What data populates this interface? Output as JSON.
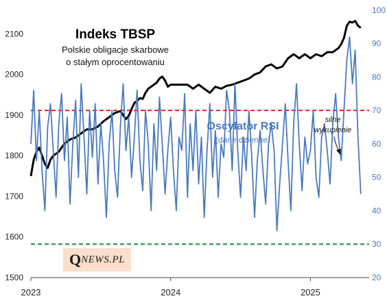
{
  "chart_data": {
    "type": "line",
    "title": "Indeks TBSP",
    "subtitle_lines": [
      "Polskie obligacje skarbowe",
      "o stałym oprocentowaniu"
    ],
    "secondary_title": "Oscylator RSI",
    "secondary_subtitle": "(dane dzienne)",
    "annotation_lines": [
      "silne",
      "wykupienie"
    ],
    "x_tick_labels": [
      "2023",
      "2024",
      "2025"
    ],
    "x_ticks_at": [
      2023,
      2024,
      2025
    ],
    "xlim": [
      2023.0,
      2025.42
    ],
    "y_left": {
      "ticks": [
        1500,
        1600,
        1700,
        1800,
        1900,
        2000,
        2100
      ],
      "ylim": [
        1500,
        2175
      ]
    },
    "y_right": {
      "ticks": [
        20,
        30,
        40,
        50,
        60,
        70,
        80,
        90,
        100
      ],
      "ylim": [
        20,
        102
      ]
    },
    "reference_lines": [
      {
        "axis": "right",
        "value": 70,
        "color": "#e02020",
        "style": "dashed"
      },
      {
        "axis": "right",
        "value": 30,
        "color": "#1f8a3c",
        "style": "dashed"
      }
    ],
    "grid": false,
    "series": [
      {
        "axis": "left",
        "color": "#000000",
        "x": [
          2023.0,
          2023.02,
          2023.04,
          2023.06,
          2023.08,
          2023.1,
          2023.12,
          2023.14,
          2023.16,
          2023.18,
          2023.2,
          2023.24,
          2023.28,
          2023.32,
          2023.36,
          2023.4,
          2023.44,
          2023.48,
          2023.52,
          2023.56,
          2023.6,
          2023.64,
          2023.66,
          2023.68,
          2023.7,
          2023.72,
          2023.74,
          2023.76,
          2023.78,
          2023.8,
          2023.82,
          2023.84,
          2023.86,
          2023.88,
          2023.9,
          2023.92,
          2023.94,
          2023.96,
          2023.98,
          2024.0,
          2024.04,
          2024.08,
          2024.12,
          2024.16,
          2024.2,
          2024.24,
          2024.28,
          2024.32,
          2024.36,
          2024.4,
          2024.44,
          2024.48,
          2024.52,
          2024.56,
          2024.6,
          2024.64,
          2024.68,
          2024.72,
          2024.76,
          2024.8,
          2024.84,
          2024.88,
          2024.92,
          2024.96,
          2025.0,
          2025.04,
          2025.08,
          2025.12,
          2025.16,
          2025.2,
          2025.22,
          2025.24,
          2025.26,
          2025.28,
          2025.3,
          2025.32,
          2025.34,
          2025.36
        ],
        "values": [
          1750,
          1790,
          1810,
          1820,
          1800,
          1780,
          1770,
          1790,
          1800,
          1805,
          1810,
          1830,
          1840,
          1845,
          1855,
          1865,
          1865,
          1872,
          1885,
          1895,
          1905,
          1910,
          1900,
          1890,
          1898,
          1915,
          1930,
          1935,
          1942,
          1940,
          1955,
          1965,
          1970,
          1975,
          1980,
          1990,
          1995,
          1985,
          1970,
          1975,
          1975,
          1975,
          1975,
          1965,
          1975,
          1965,
          1955,
          1970,
          1965,
          1972,
          1975,
          1980,
          1985,
          1990,
          2000,
          2005,
          2020,
          2025,
          2015,
          2020,
          2040,
          2050,
          2040,
          2050,
          2040,
          2050,
          2045,
          2055,
          2055,
          2065,
          2075,
          2090,
          2120,
          2130,
          2128,
          2132,
          2120,
          2115
        ]
      },
      {
        "axis": "right",
        "color": "#4a7abf",
        "x": [
          2023.0,
          2023.02,
          2023.04,
          2023.06,
          2023.08,
          2023.1,
          2023.12,
          2023.14,
          2023.16,
          2023.18,
          2023.2,
          2023.22,
          2023.24,
          2023.26,
          2023.28,
          2023.3,
          2023.32,
          2023.34,
          2023.36,
          2023.38,
          2023.4,
          2023.42,
          2023.44,
          2023.46,
          2023.48,
          2023.5,
          2023.52,
          2023.54,
          2023.56,
          2023.58,
          2023.6,
          2023.62,
          2023.64,
          2023.66,
          2023.68,
          2023.7,
          2023.72,
          2023.74,
          2023.76,
          2023.78,
          2023.8,
          2023.82,
          2023.84,
          2023.86,
          2023.88,
          2023.9,
          2023.92,
          2023.94,
          2023.96,
          2023.98,
          2024.0,
          2024.02,
          2024.04,
          2024.06,
          2024.08,
          2024.1,
          2024.12,
          2024.14,
          2024.16,
          2024.18,
          2024.2,
          2024.22,
          2024.24,
          2024.26,
          2024.28,
          2024.3,
          2024.32,
          2024.34,
          2024.36,
          2024.38,
          2024.4,
          2024.42,
          2024.44,
          2024.46,
          2024.48,
          2024.5,
          2024.52,
          2024.54,
          2024.56,
          2024.58,
          2024.6,
          2024.62,
          2024.64,
          2024.66,
          2024.68,
          2024.7,
          2024.72,
          2024.74,
          2024.76,
          2024.78,
          2024.8,
          2024.82,
          2024.84,
          2024.86,
          2024.88,
          2024.9,
          2024.92,
          2024.94,
          2024.96,
          2024.98,
          2025.0,
          2025.02,
          2025.04,
          2025.06,
          2025.08,
          2025.1,
          2025.12,
          2025.14,
          2025.16,
          2025.18,
          2025.2,
          2025.22,
          2025.24,
          2025.26,
          2025.28,
          2025.3,
          2025.32,
          2025.34,
          2025.36
        ],
        "values": [
          60,
          76,
          55,
          70,
          52,
          40,
          65,
          72,
          58,
          44,
          66,
          75,
          55,
          68,
          42,
          60,
          73,
          50,
          78,
          62,
          45,
          70,
          56,
          72,
          48,
          66,
          55,
          38,
          60,
          70,
          52,
          44,
          65,
          78,
          58,
          68,
          50,
          62,
          76,
          55,
          46,
          70,
          60,
          40,
          66,
          52,
          74,
          60,
          45,
          58,
          68,
          52,
          40,
          62,
          58,
          75,
          44,
          66,
          52,
          70,
          48,
          62,
          38,
          58,
          72,
          50,
          64,
          44,
          60,
          56,
          76,
          70,
          52,
          78,
          58,
          44,
          62,
          52,
          70,
          56,
          38,
          55,
          64,
          52,
          42,
          60,
          66,
          58,
          34,
          48,
          60,
          72,
          55,
          40,
          66,
          78,
          60,
          46,
          62,
          54,
          58,
          70,
          50,
          44,
          62,
          66,
          58,
          48,
          66,
          75,
          62,
          55,
          70,
          85,
          92,
          78,
          88,
          62,
          45
        ]
      }
    ]
  },
  "logo": {
    "q": "Q",
    "rest": "NEWS.PL"
  }
}
